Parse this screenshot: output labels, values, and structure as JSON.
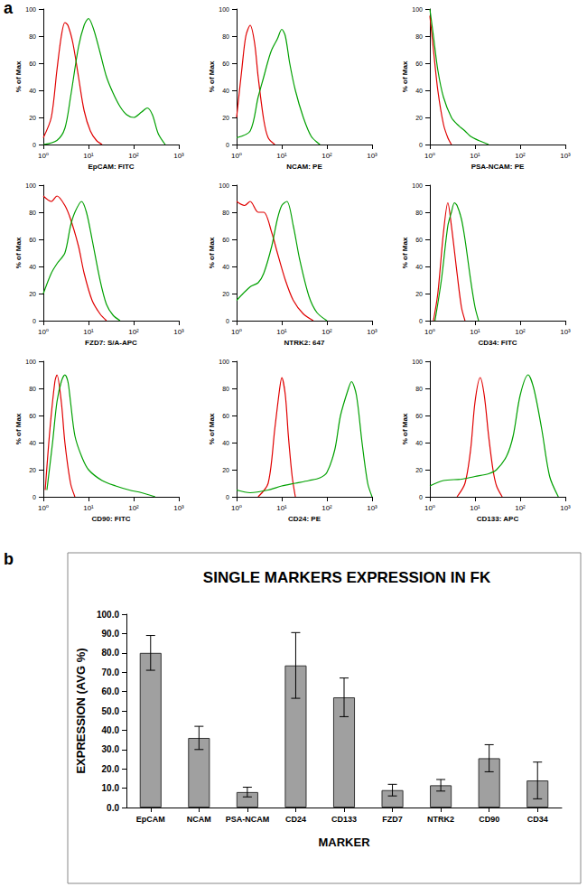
{
  "chart_data": [
    {
      "type": "line",
      "annotations": [
        "a"
      ],
      "x_label": "EpCAM: FITC",
      "y_label": "% of Max",
      "log": "x",
      "grid": false,
      "xlim": [
        1,
        1000
      ],
      "xticks": [
        {
          "value": 1,
          "label": "10⁰"
        },
        {
          "value": 10,
          "label": "10¹"
        },
        {
          "value": 100,
          "label": "10²"
        },
        {
          "value": 1000,
          "label": "10³"
        }
      ],
      "ylim": [
        0,
        100
      ],
      "yticks": [
        0,
        20,
        40,
        60,
        80,
        100
      ],
      "series": [
        {
          "color": "#e00000",
          "x": [
            1,
            1.5,
            2,
            2.5,
            3,
            3.5,
            4.5,
            6,
            8,
            11,
            15,
            20
          ],
          "values": [
            5,
            20,
            55,
            80,
            90,
            88,
            75,
            50,
            25,
            10,
            3,
            0
          ]
        },
        {
          "color": "#00a000",
          "x": [
            1,
            2,
            3,
            4,
            6,
            8,
            10,
            13,
            18,
            25,
            35,
            50,
            70,
            100,
            150,
            200,
            260,
            350,
            500
          ],
          "values": [
            0,
            3,
            12,
            35,
            72,
            88,
            93,
            85,
            68,
            50,
            38,
            28,
            22,
            20,
            24,
            27,
            22,
            8,
            0
          ]
        }
      ]
    },
    {
      "type": "line",
      "x_label": "NCAM: PE",
      "y_label": "% of Max",
      "log": "x",
      "grid": false,
      "xlim": [
        1,
        1000
      ],
      "xticks": [
        {
          "value": 1,
          "label": "10⁰"
        },
        {
          "value": 10,
          "label": "10¹"
        },
        {
          "value": 100,
          "label": "10²"
        },
        {
          "value": 1000,
          "label": "10³"
        }
      ],
      "ylim": [
        0,
        100
      ],
      "yticks": [
        0,
        20,
        40,
        60,
        80,
        100
      ],
      "series": [
        {
          "color": "#e00000",
          "x": [
            1,
            1.3,
            1.6,
            2,
            2.5,
            3,
            4,
            5,
            7
          ],
          "values": [
            20,
            55,
            80,
            88,
            75,
            50,
            18,
            5,
            0
          ]
        },
        {
          "color": "#00a000",
          "x": [
            1,
            2,
            3,
            4,
            5,
            6,
            8,
            10,
            12,
            15,
            20,
            30,
            45,
            70
          ],
          "values": [
            5,
            10,
            35,
            50,
            62,
            70,
            78,
            85,
            80,
            60,
            40,
            20,
            6,
            0
          ]
        }
      ]
    },
    {
      "type": "line",
      "x_label": "PSA-NCAM: PE",
      "y_label": "% of Max",
      "log": "x",
      "grid": false,
      "xlim": [
        1,
        1000
      ],
      "xticks": [
        {
          "value": 1,
          "label": "10⁰"
        },
        {
          "value": 10,
          "label": "10¹"
        },
        {
          "value": 100,
          "label": "10²"
        },
        {
          "value": 1000,
          "label": "10³"
        }
      ],
      "ylim": [
        0,
        100
      ],
      "yticks": [
        0,
        20,
        40,
        60,
        80,
        100
      ],
      "series": [
        {
          "color": "#e00000",
          "x": [
            1,
            1.2,
            1.5,
            2,
            2.5,
            3
          ],
          "values": [
            95,
            70,
            40,
            15,
            5,
            0
          ]
        },
        {
          "color": "#00a000",
          "x": [
            1,
            1.2,
            1.5,
            2,
            3,
            4,
            6,
            8,
            12,
            20
          ],
          "values": [
            100,
            80,
            55,
            35,
            20,
            15,
            10,
            6,
            3,
            0
          ]
        }
      ]
    },
    {
      "type": "line",
      "x_label": "FZD7: S/A-APC",
      "y_label": "% of Max",
      "log": "x",
      "grid": false,
      "xlim": [
        1,
        1000
      ],
      "xticks": [
        {
          "value": 1,
          "label": "10⁰"
        },
        {
          "value": 10,
          "label": "10¹"
        },
        {
          "value": 100,
          "label": "10²"
        },
        {
          "value": 1000,
          "label": "10³"
        }
      ],
      "ylim": [
        0,
        100
      ],
      "yticks": [
        0,
        20,
        40,
        60,
        80,
        100
      ],
      "series": [
        {
          "color": "#e00000",
          "x": [
            1,
            1.5,
            2,
            3,
            4,
            6,
            8,
            12,
            18,
            25
          ],
          "values": [
            92,
            88,
            92,
            85,
            75,
            55,
            35,
            15,
            5,
            0
          ]
        },
        {
          "color": "#00a000",
          "x": [
            1,
            1.5,
            2,
            3,
            4,
            5,
            7,
            9,
            12,
            18,
            25,
            35,
            50
          ],
          "values": [
            20,
            35,
            42,
            50,
            70,
            80,
            88,
            80,
            60,
            30,
            12,
            4,
            0
          ]
        }
      ]
    },
    {
      "type": "line",
      "x_label": "NTRK2: 647",
      "y_label": "% of Max",
      "log": "x",
      "grid": false,
      "xlim": [
        1,
        1000
      ],
      "xticks": [
        {
          "value": 1,
          "label": "10⁰"
        },
        {
          "value": 10,
          "label": "10¹"
        },
        {
          "value": 100,
          "label": "10²"
        },
        {
          "value": 1000,
          "label": "10³"
        }
      ],
      "ylim": [
        0,
        100
      ],
      "yticks": [
        0,
        20,
        40,
        60,
        80,
        100
      ],
      "series": [
        {
          "color": "#e00000",
          "x": [
            1,
            1.5,
            2,
            3,
            4,
            6,
            8,
            12,
            18,
            30,
            50
          ],
          "values": [
            88,
            85,
            88,
            80,
            80,
            65,
            50,
            30,
            15,
            5,
            0
          ]
        },
        {
          "color": "#00a000",
          "x": [
            1,
            2,
            3,
            4,
            6,
            8,
            10,
            13,
            18,
            25,
            40,
            60,
            100
          ],
          "values": [
            15,
            25,
            28,
            35,
            55,
            75,
            85,
            88,
            70,
            45,
            18,
            6,
            0
          ]
        }
      ]
    },
    {
      "type": "line",
      "x_label": "CD34: FITC",
      "y_label": "% of Max",
      "log": "x",
      "grid": false,
      "xlim": [
        1,
        1000
      ],
      "xticks": [
        {
          "value": 1,
          "label": "10⁰"
        },
        {
          "value": 10,
          "label": "10¹"
        },
        {
          "value": 100,
          "label": "10²"
        },
        {
          "value": 1000,
          "label": "10³"
        }
      ],
      "ylim": [
        0,
        100
      ],
      "yticks": [
        0,
        20,
        40,
        60,
        80,
        100
      ],
      "series": [
        {
          "color": "#e00000",
          "x": [
            1.2,
            1.5,
            2,
            2.5,
            3,
            4,
            5,
            6
          ],
          "values": [
            0,
            20,
            65,
            87,
            70,
            35,
            10,
            0
          ]
        },
        {
          "color": "#00a000",
          "x": [
            1.3,
            1.8,
            2.5,
            3,
            3.5,
            4,
            5,
            6,
            8,
            10,
            12
          ],
          "values": [
            0,
            30,
            70,
            80,
            87,
            85,
            75,
            60,
            30,
            10,
            0
          ]
        }
      ]
    },
    {
      "type": "line",
      "x_label": "CD90: FITC",
      "y_label": "% of Max",
      "log": "x",
      "grid": false,
      "xlim": [
        1,
        1000
      ],
      "xticks": [
        {
          "value": 1,
          "label": "10⁰"
        },
        {
          "value": 10,
          "label": "10¹"
        },
        {
          "value": 100,
          "label": "10²"
        },
        {
          "value": 1000,
          "label": "10³"
        }
      ],
      "ylim": [
        0,
        100
      ],
      "yticks": [
        0,
        20,
        40,
        60,
        80,
        100
      ],
      "series": [
        {
          "color": "#e00000",
          "x": [
            1.1,
            1.4,
            1.8,
            2,
            2.5,
            3,
            4,
            5
          ],
          "values": [
            5,
            50,
            85,
            90,
            70,
            40,
            10,
            0
          ]
        },
        {
          "color": "#00a000",
          "x": [
            1.2,
            1.6,
            2,
            2.5,
            3,
            3.5,
            4,
            5,
            7,
            10,
            20,
            40,
            80,
            150,
            300
          ],
          "values": [
            5,
            40,
            70,
            85,
            90,
            85,
            70,
            45,
            30,
            20,
            12,
            8,
            5,
            3,
            0
          ]
        }
      ]
    },
    {
      "type": "line",
      "x_label": "CD24: PE",
      "y_label": "% of Max",
      "log": "x",
      "grid": false,
      "xlim": [
        1,
        1000
      ],
      "xticks": [
        {
          "value": 1,
          "label": "10⁰"
        },
        {
          "value": 10,
          "label": "10¹"
        },
        {
          "value": 100,
          "label": "10²"
        },
        {
          "value": 1000,
          "label": "10³"
        }
      ],
      "ylim": [
        0,
        100
      ],
      "yticks": [
        0,
        20,
        40,
        60,
        80,
        100
      ],
      "series": [
        {
          "color": "#e00000",
          "x": [
            3,
            5,
            7,
            9,
            10,
            12,
            14,
            17,
            20
          ],
          "values": [
            0,
            10,
            50,
            80,
            88,
            75,
            45,
            15,
            0
          ]
        },
        {
          "color": "#00a000",
          "x": [
            1,
            2,
            5,
            10,
            20,
            40,
            70,
            100,
            150,
            200,
            300,
            350,
            450,
            600,
            800,
            1000
          ],
          "values": [
            5,
            3,
            5,
            8,
            10,
            12,
            14,
            18,
            35,
            60,
            80,
            85,
            75,
            40,
            10,
            0
          ]
        }
      ]
    },
    {
      "type": "line",
      "x_label": "CD133: APC",
      "y_label": "% of Max",
      "log": "x",
      "grid": false,
      "xlim": [
        1,
        1000
      ],
      "xticks": [
        {
          "value": 1,
          "label": "10⁰"
        },
        {
          "value": 10,
          "label": "10¹"
        },
        {
          "value": 100,
          "label": "10²"
        },
        {
          "value": 1000,
          "label": "10³"
        }
      ],
      "ylim": [
        0,
        100
      ],
      "yticks": [
        0,
        20,
        40,
        60,
        80,
        100
      ],
      "series": [
        {
          "color": "#e00000",
          "x": [
            4,
            6,
            8,
            10,
            13,
            16,
            20,
            25,
            30,
            40
          ],
          "values": [
            0,
            10,
            35,
            70,
            88,
            75,
            45,
            20,
            8,
            0
          ]
        },
        {
          "color": "#00a000",
          "x": [
            1,
            2,
            5,
            10,
            20,
            30,
            50,
            70,
            100,
            150,
            200,
            300,
            450,
            700
          ],
          "values": [
            8,
            12,
            13,
            15,
            17,
            20,
            30,
            45,
            75,
            90,
            80,
            50,
            15,
            0
          ]
        }
      ]
    },
    {
      "type": "bar",
      "annotations": [
        "b"
      ],
      "title": "SINGLE MARKERS EXPRESSION IN FK",
      "x_label": "MARKER",
      "y_label": "EXPRESSION (AVG %)",
      "grid": false,
      "categories": [
        "EpCAM",
        "NCAM",
        "PSA-NCAM",
        "CD24",
        "CD133",
        "FZD7",
        "NTRK2",
        "CD90",
        "CD34"
      ],
      "values": [
        80,
        36,
        8,
        73.5,
        57,
        9,
        11.5,
        25.5,
        14
      ],
      "errors": [
        9,
        6,
        2.5,
        17,
        10,
        3,
        3,
        7,
        9.5
      ],
      "color": "#a0a0a0",
      "ylim": [
        0,
        100
      ],
      "yticks": [
        {
          "value": 0,
          "label": "0.0"
        },
        {
          "value": 10,
          "label": "10.0"
        },
        {
          "value": 20,
          "label": "20.0"
        },
        {
          "value": 30,
          "label": "30.0"
        },
        {
          "value": 40,
          "label": "40.0"
        },
        {
          "value": 50,
          "label": "50.0"
        },
        {
          "value": 60,
          "label": "60.0"
        },
        {
          "value": 70,
          "label": "70.0"
        },
        {
          "value": 80,
          "label": "80.0"
        },
        {
          "value": 90,
          "label": "90.0"
        },
        {
          "value": 100,
          "label": "100.0"
        }
      ]
    }
  ]
}
